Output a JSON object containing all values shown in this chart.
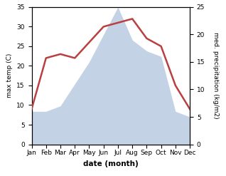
{
  "months": [
    "Jan",
    "Feb",
    "Mar",
    "Apr",
    "May",
    "Jun",
    "Jul",
    "Aug",
    "Sep",
    "Oct",
    "Nov",
    "Dec"
  ],
  "temperature": [
    9,
    22,
    23,
    22,
    26,
    30,
    31,
    32,
    27,
    25,
    15,
    9
  ],
  "precipitation": [
    6,
    6,
    7,
    11,
    15,
    20,
    25,
    19,
    17,
    16,
    6,
    5
  ],
  "temp_color": "#b94040",
  "precip_color": "#b0c4de",
  "precip_fill_alpha": 0.75,
  "left_ylim": [
    0,
    35
  ],
  "right_ylim": [
    0,
    25
  ],
  "left_yticks": [
    0,
    5,
    10,
    15,
    20,
    25,
    30,
    35
  ],
  "right_yticks": [
    0,
    5,
    10,
    15,
    20,
    25
  ],
  "left_ylabel": "max temp (C)",
  "right_ylabel": "med. precipitation (kg/m2)",
  "xlabel": "date (month)",
  "temp_linewidth": 1.8,
  "background_color": "#ffffff"
}
